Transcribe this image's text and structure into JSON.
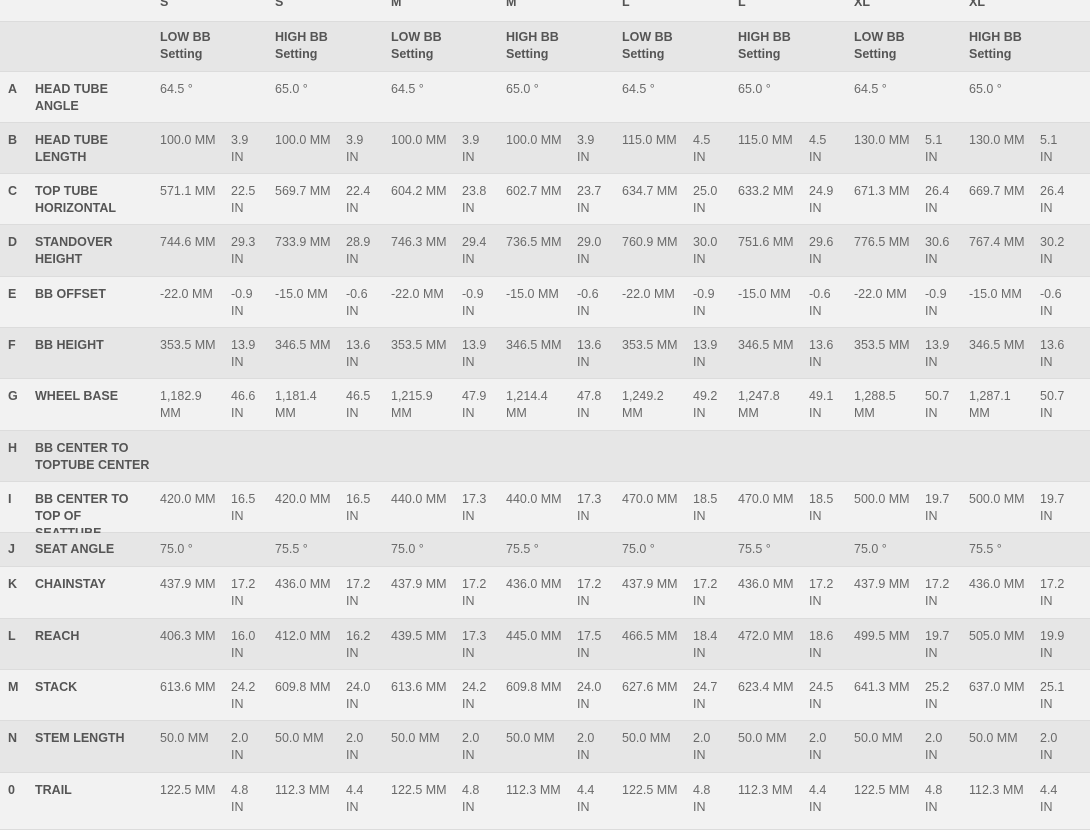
{
  "sizes": [
    "S",
    "S",
    "M",
    "M",
    "L",
    "L",
    "XL",
    "XL"
  ],
  "settings": [
    "LOW BB Setting",
    "HIGH BB Setting",
    "LOW BB Setting",
    "HIGH BB Setting",
    "LOW BB Setting",
    "HIGH BB Setting",
    "LOW BB Setting",
    "HIGH BB Setting"
  ],
  "rows": [
    {
      "letter": "A",
      "label": "HEAD TUBE ANGLE",
      "values": [
        [
          "64.5 °"
        ],
        [
          "65.0 °"
        ],
        [
          "64.5 °"
        ],
        [
          "65.0 °"
        ],
        [
          "64.5 °"
        ],
        [
          "65.0 °"
        ],
        [
          "64.5 °"
        ],
        [
          "65.0 °"
        ]
      ]
    },
    {
      "letter": "B",
      "label": "HEAD TUBE LENGTH",
      "values": [
        [
          "100.0 MM",
          "3.9 IN"
        ],
        [
          "100.0 MM",
          "3.9 IN"
        ],
        [
          "100.0 MM",
          "3.9 IN"
        ],
        [
          "100.0 MM",
          "3.9 IN"
        ],
        [
          "115.0 MM",
          "4.5 IN"
        ],
        [
          "115.0 MM",
          "4.5 IN"
        ],
        [
          "130.0 MM",
          "5.1 IN"
        ],
        [
          "130.0 MM",
          "5.1 IN"
        ]
      ]
    },
    {
      "letter": "C",
      "label": "TOP TUBE HORIZONTAL",
      "values": [
        [
          "571.1 MM",
          "22.5 IN"
        ],
        [
          "569.7 MM",
          "22.4 IN"
        ],
        [
          "604.2 MM",
          "23.8 IN"
        ],
        [
          "602.7 MM",
          "23.7 IN"
        ],
        [
          "634.7 MM",
          "25.0 IN"
        ],
        [
          "633.2 MM",
          "24.9 IN"
        ],
        [
          "671.3 MM",
          "26.4 IN"
        ],
        [
          "669.7 MM",
          "26.4 IN"
        ]
      ]
    },
    {
      "letter": "D",
      "label": "STANDOVER HEIGHT",
      "values": [
        [
          "744.6 MM",
          "29.3 IN"
        ],
        [
          "733.9 MM",
          "28.9 IN"
        ],
        [
          "746.3 MM",
          "29.4 IN"
        ],
        [
          "736.5 MM",
          "29.0 IN"
        ],
        [
          "760.9 MM",
          "30.0 IN"
        ],
        [
          "751.6 MM",
          "29.6 IN"
        ],
        [
          "776.5 MM",
          "30.6 IN"
        ],
        [
          "767.4 MM",
          "30.2 IN"
        ]
      ]
    },
    {
      "letter": "E",
      "label": "BB OFFSET",
      "values": [
        [
          "-22.0 MM",
          "-0.9 IN"
        ],
        [
          "-15.0 MM",
          "-0.6 IN"
        ],
        [
          "-22.0 MM",
          "-0.9 IN"
        ],
        [
          "-15.0 MM",
          "-0.6 IN"
        ],
        [
          "-22.0 MM",
          "-0.9 IN"
        ],
        [
          "-15.0 MM",
          "-0.6 IN"
        ],
        [
          "-22.0 MM",
          "-0.9 IN"
        ],
        [
          "-15.0 MM",
          "-0.6 IN"
        ]
      ]
    },
    {
      "letter": "F",
      "label": "BB HEIGHT",
      "values": [
        [
          "353.5 MM",
          "13.9 IN"
        ],
        [
          "346.5 MM",
          "13.6 IN"
        ],
        [
          "353.5 MM",
          "13.9 IN"
        ],
        [
          "346.5 MM",
          "13.6 IN"
        ],
        [
          "353.5 MM",
          "13.9 IN"
        ],
        [
          "346.5 MM",
          "13.6 IN"
        ],
        [
          "353.5 MM",
          "13.9 IN"
        ],
        [
          "346.5 MM",
          "13.6 IN"
        ]
      ]
    },
    {
      "letter": "G",
      "label": "WHEEL BASE",
      "values": [
        [
          "1,182.9 MM",
          "46.6 IN"
        ],
        [
          "1,181.4 MM",
          "46.5 IN"
        ],
        [
          "1,215.9 MM",
          "47.9 IN"
        ],
        [
          "1,214.4 MM",
          "47.8 IN"
        ],
        [
          "1,249.2 MM",
          "49.2 IN"
        ],
        [
          "1,247.8 MM",
          "49.1 IN"
        ],
        [
          "1,288.5 MM",
          "50.7 IN"
        ],
        [
          "1,287.1 MM",
          "50.7 IN"
        ]
      ]
    },
    {
      "letter": "H",
      "label": "BB CENTER TO TOPTUBE CENTER",
      "values": []
    },
    {
      "letter": "I",
      "label": "BB CENTER TO TOP OF SEATTUBE",
      "values": [
        [
          "420.0 MM",
          "16.5 IN"
        ],
        [
          "420.0 MM",
          "16.5 IN"
        ],
        [
          "440.0 MM",
          "17.3 IN"
        ],
        [
          "440.0 MM",
          "17.3 IN"
        ],
        [
          "470.0 MM",
          "18.5 IN"
        ],
        [
          "470.0 MM",
          "18.5 IN"
        ],
        [
          "500.0 MM",
          "19.7 IN"
        ],
        [
          "500.0 MM",
          "19.7 IN"
        ]
      ]
    },
    {
      "letter": "J",
      "label": "SEAT ANGLE",
      "values": [
        [
          "75.0 °"
        ],
        [
          "75.5 °"
        ],
        [
          "75.0 °"
        ],
        [
          "75.5 °"
        ],
        [
          "75.0 °"
        ],
        [
          "75.5 °"
        ],
        [
          "75.0 °"
        ],
        [
          "75.5 °"
        ]
      ]
    },
    {
      "letter": "K",
      "label": "CHAINSTAY",
      "values": [
        [
          "437.9 MM",
          "17.2 IN"
        ],
        [
          "436.0 MM",
          "17.2 IN"
        ],
        [
          "437.9 MM",
          "17.2 IN"
        ],
        [
          "436.0 MM",
          "17.2 IN"
        ],
        [
          "437.9 MM",
          "17.2 IN"
        ],
        [
          "436.0 MM",
          "17.2 IN"
        ],
        [
          "437.9 MM",
          "17.2 IN"
        ],
        [
          "436.0 MM",
          "17.2 IN"
        ]
      ]
    },
    {
      "letter": "L",
      "label": "REACH",
      "values": [
        [
          "406.3 MM",
          "16.0 IN"
        ],
        [
          "412.0 MM",
          "16.2 IN"
        ],
        [
          "439.5 MM",
          "17.3 IN"
        ],
        [
          "445.0 MM",
          "17.5 IN"
        ],
        [
          "466.5 MM",
          "18.4 IN"
        ],
        [
          "472.0 MM",
          "18.6 IN"
        ],
        [
          "499.5 MM",
          "19.7 IN"
        ],
        [
          "505.0 MM",
          "19.9 IN"
        ]
      ]
    },
    {
      "letter": "M",
      "label": "STACK",
      "values": [
        [
          "613.6 MM",
          "24.2 IN"
        ],
        [
          "609.8 MM",
          "24.0 IN"
        ],
        [
          "613.6 MM",
          "24.2 IN"
        ],
        [
          "609.8 MM",
          "24.0 IN"
        ],
        [
          "627.6 MM",
          "24.7 IN"
        ],
        [
          "623.4 MM",
          "24.5 IN"
        ],
        [
          "641.3 MM",
          "25.2 IN"
        ],
        [
          "637.0 MM",
          "25.1 IN"
        ]
      ]
    },
    {
      "letter": "N",
      "label": "STEM LENGTH",
      "values": [
        [
          "50.0 MM",
          "2.0 IN"
        ],
        [
          "50.0 MM",
          "2.0 IN"
        ],
        [
          "50.0 MM",
          "2.0 IN"
        ],
        [
          "50.0 MM",
          "2.0 IN"
        ],
        [
          "50.0 MM",
          "2.0 IN"
        ],
        [
          "50.0 MM",
          "2.0 IN"
        ],
        [
          "50.0 MM",
          "2.0 IN"
        ],
        [
          "50.0 MM",
          "2.0 IN"
        ]
      ]
    },
    {
      "letter": "0",
      "label": "TRAIL",
      "values": [
        [
          "122.5 MM",
          "4.8 IN"
        ],
        [
          "112.3 MM",
          "4.4 IN"
        ],
        [
          "122.5 MM",
          "4.8 IN"
        ],
        [
          "112.3 MM",
          "4.4 IN"
        ],
        [
          "122.5 MM",
          "4.8 IN"
        ],
        [
          "112.3 MM",
          "4.4 IN"
        ],
        [
          "122.5 MM",
          "4.8 IN"
        ],
        [
          "112.3 MM",
          "4.4 IN"
        ]
      ]
    }
  ]
}
